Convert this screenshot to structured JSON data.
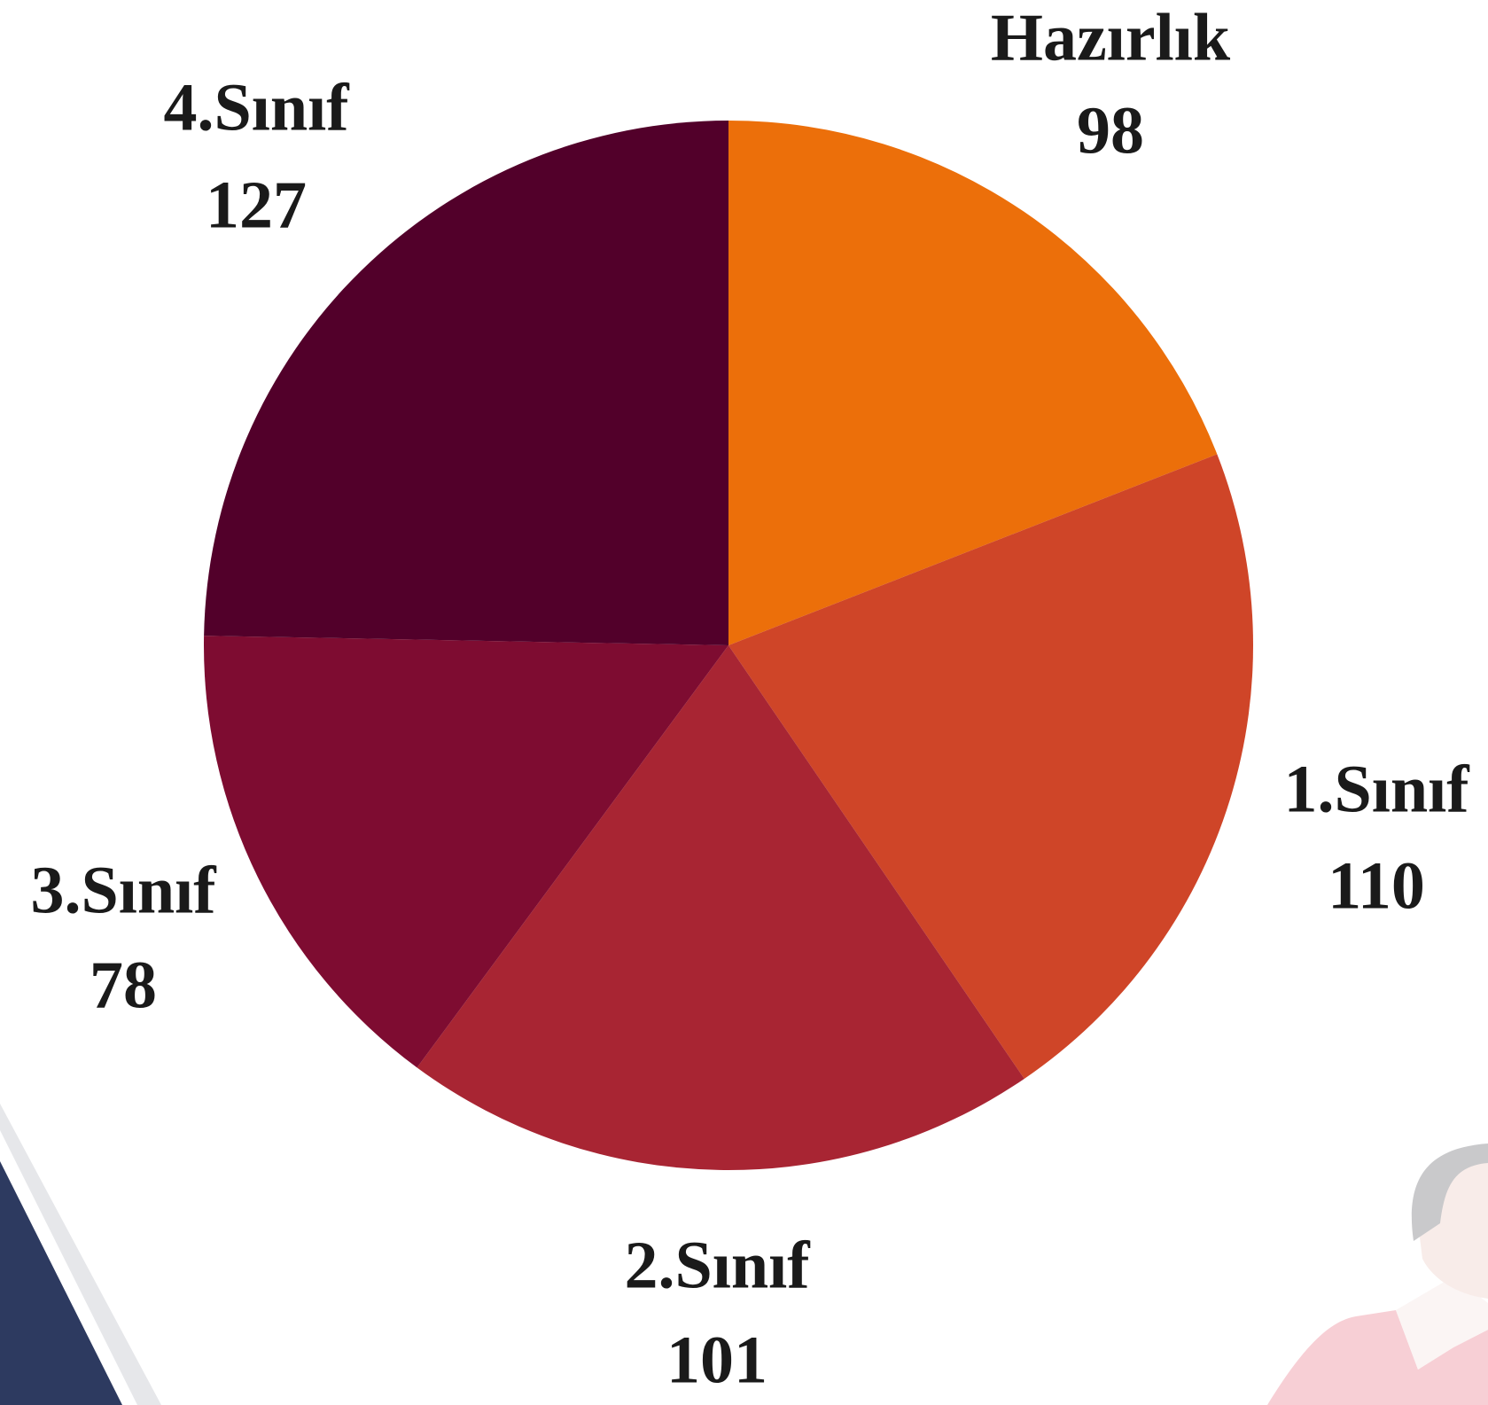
{
  "chart_data": {
    "type": "pie",
    "categories": [
      "Hazırlık",
      "1.Sınıf",
      "2.Sınıf",
      "3.Sınıf",
      "4.Sınıf"
    ],
    "values": [
      98,
      110,
      101,
      78,
      127
    ],
    "colors": [
      "#ec6f0a",
      "#cf4528",
      "#a82533",
      "#7e0c31",
      "#52002a"
    ]
  }
}
